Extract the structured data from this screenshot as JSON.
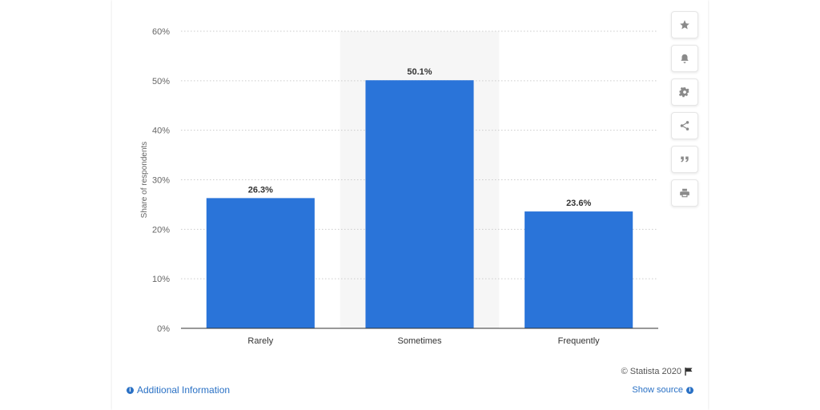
{
  "chart_data": {
    "type": "bar",
    "categories": [
      "Rarely",
      "Sometimes",
      "Frequently"
    ],
    "values": [
      26.3,
      50.1,
      23.6
    ],
    "value_labels": [
      "26.3%",
      "50.1%",
      "23.6%"
    ],
    "title": "",
    "xlabel": "",
    "ylabel": "Share of respondents",
    "ylim": [
      0,
      60
    ],
    "yticks": [
      0,
      10,
      20,
      30,
      40,
      50,
      60
    ],
    "ytick_labels": [
      "0%",
      "10%",
      "20%",
      "30%",
      "40%",
      "50%",
      "60%"
    ],
    "grid": true,
    "bar_color": "#2a74d9",
    "highlighted_category": "Sometimes"
  },
  "footer": {
    "credit": "© Statista 2020",
    "additional_info": "Additional Information",
    "show_source": "Show source"
  },
  "toolbar": {
    "icons": [
      "star-icon",
      "bell-icon",
      "gear-icon",
      "share-icon",
      "quote-icon",
      "print-icon"
    ]
  },
  "colors": {
    "link": "#2a71c5",
    "grid": "#cccccc",
    "axis": "#333333",
    "highlight_band": "#f6f6f6"
  }
}
